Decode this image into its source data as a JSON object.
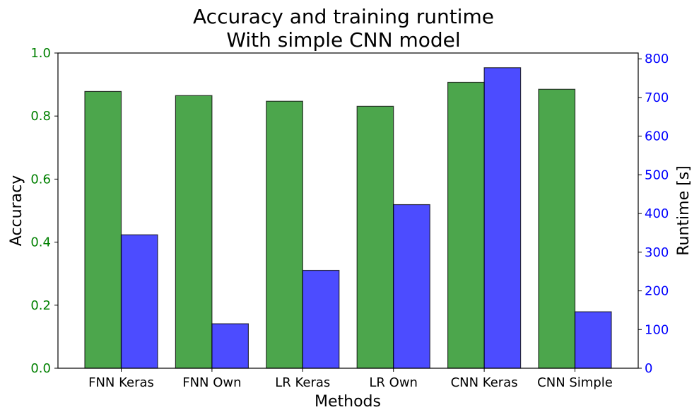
{
  "chart_data": {
    "type": "bar",
    "title_line1": "Accuracy and training runtime",
    "title_line2": "With simple CNN model",
    "xlabel": "Methods",
    "categories": [
      "FNN Keras",
      "FNN Own",
      "LR Keras",
      "LR Own",
      "CNN Keras",
      "CNN Simple"
    ],
    "series": [
      {
        "name": "Accuracy",
        "axis": "left",
        "color": "#008000",
        "values": [
          0.878,
          0.865,
          0.847,
          0.831,
          0.907,
          0.885
        ]
      },
      {
        "name": "Runtime [s]",
        "axis": "right",
        "color": "#0000ff",
        "values": [
          345,
          115,
          253,
          423,
          777,
          146
        ]
      }
    ],
    "y_left": {
      "label": "Accuracy",
      "color": "#008000",
      "ylim": [
        0,
        1.0
      ],
      "ticks": [
        "0.0",
        "0.2",
        "0.4",
        "0.6",
        "0.8",
        "1.0"
      ]
    },
    "y_right": {
      "label": "Runtime [s]",
      "color": "#0000ff",
      "ylim": [
        0,
        815
      ],
      "ticks": [
        "0",
        "100",
        "200",
        "300",
        "400",
        "500",
        "600",
        "700",
        "800"
      ]
    },
    "grid": false
  }
}
